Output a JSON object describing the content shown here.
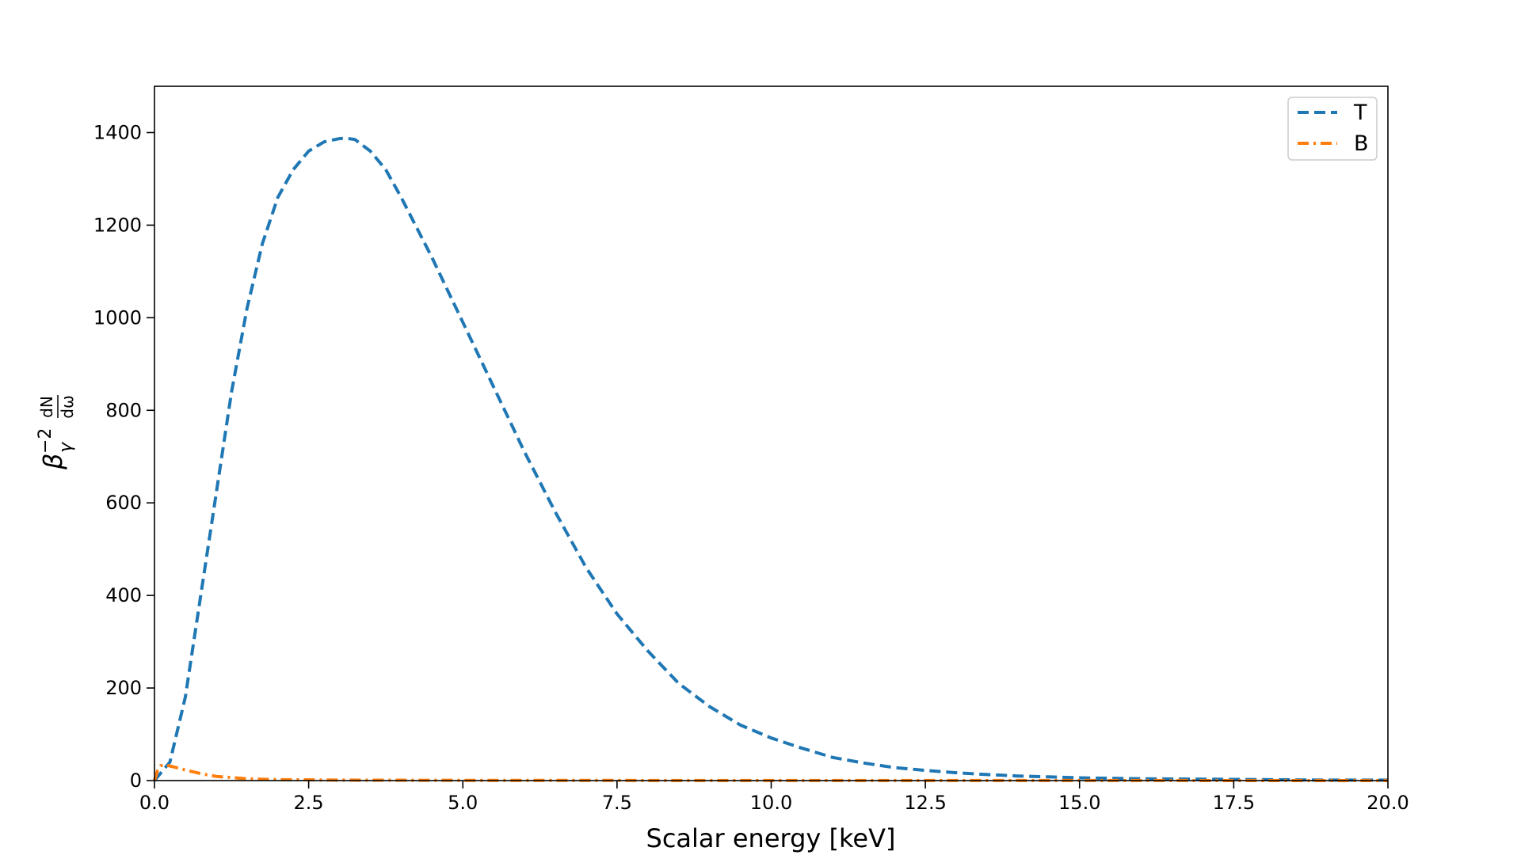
{
  "chart_data": {
    "type": "line",
    "xlabel": "Scalar energy [keV]",
    "ylabel": "β_γ^{-2} dN/dω",
    "ylabel_parts": {
      "beta": "β",
      "gamma": "γ",
      "exp": "−2",
      "num": "dN",
      "den": "dω"
    },
    "xlim": [
      0,
      20
    ],
    "ylim": [
      0,
      1500
    ],
    "xticks": [
      0,
      2.5,
      5,
      7.5,
      10,
      12.5,
      15,
      17.5,
      20
    ],
    "xtick_labels": [
      "0.0",
      "2.5",
      "5.0",
      "7.5",
      "10.0",
      "12.5",
      "15.0",
      "17.5",
      "20.0"
    ],
    "yticks": [
      0,
      200,
      400,
      600,
      800,
      1000,
      1200,
      1400
    ],
    "ytick_labels": [
      "0",
      "200",
      "400",
      "600",
      "800",
      "1000",
      "1200",
      "1400"
    ],
    "grid": false,
    "legend_position": "top-right",
    "series": [
      {
        "name": "T",
        "color": "#1f77b4",
        "style": "dashed",
        "x": [
          0,
          0.25,
          0.5,
          0.75,
          1.0,
          1.25,
          1.5,
          1.75,
          2.0,
          2.25,
          2.5,
          2.75,
          3.0,
          3.1,
          3.25,
          3.5,
          3.75,
          4.0,
          4.5,
          5.0,
          5.5,
          6.0,
          6.5,
          7.0,
          7.5,
          8.0,
          8.5,
          9.0,
          9.5,
          10.0,
          10.5,
          11.0,
          11.5,
          12.0,
          12.5,
          13.0,
          13.5,
          14.0,
          14.5,
          15.0,
          16.0,
          17.0,
          18.0,
          19.0,
          20.0
        ],
        "y": [
          0,
          40,
          180,
          400,
          620,
          840,
          1020,
          1160,
          1260,
          1320,
          1360,
          1380,
          1387,
          1388,
          1385,
          1360,
          1320,
          1260,
          1130,
          990,
          850,
          710,
          580,
          460,
          360,
          280,
          210,
          160,
          120,
          92,
          70,
          50,
          38,
          28,
          22,
          17,
          13,
          10,
          8,
          6,
          4,
          3,
          2,
          1,
          1
        ]
      },
      {
        "name": "B",
        "color": "#ff7f0e",
        "style": "dashdot",
        "x": [
          0,
          0.05,
          0.1,
          0.15,
          0.2,
          0.3,
          0.5,
          0.75,
          1.0,
          1.5,
          2.0,
          3.0,
          5.0,
          10.0,
          15.0,
          20.0
        ],
        "y": [
          0,
          22,
          32,
          34,
          33,
          30,
          23,
          15,
          9,
          4,
          2,
          1,
          0.5,
          0.2,
          0.1,
          0
        ]
      }
    ]
  }
}
